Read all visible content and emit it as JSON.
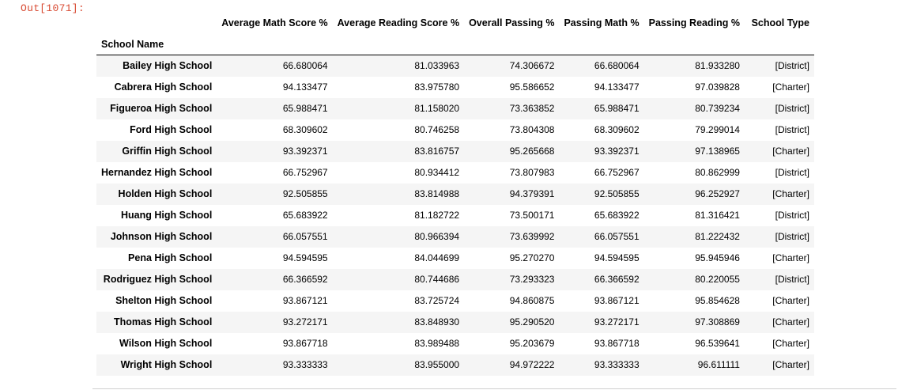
{
  "cell": {
    "prompt": "Out[1071]:"
  },
  "dataframe": {
    "index_name": "School Name",
    "columns": [
      "Average Math Score %",
      "Average Reading Score %",
      "Overall Passing %",
      "Passing Math %",
      "Passing Reading %",
      "School Type"
    ],
    "rows": [
      {
        "name": "Bailey High School",
        "cells": [
          "66.680064",
          "81.033963",
          "74.306672",
          "66.680064",
          "81.933280",
          "[District]"
        ]
      },
      {
        "name": "Cabrera High School",
        "cells": [
          "94.133477",
          "83.975780",
          "95.586652",
          "94.133477",
          "97.039828",
          "[Charter]"
        ]
      },
      {
        "name": "Figueroa High School",
        "cells": [
          "65.988471",
          "81.158020",
          "73.363852",
          "65.988471",
          "80.739234",
          "[District]"
        ]
      },
      {
        "name": "Ford High School",
        "cells": [
          "68.309602",
          "80.746258",
          "73.804308",
          "68.309602",
          "79.299014",
          "[District]"
        ]
      },
      {
        "name": "Griffin High School",
        "cells": [
          "93.392371",
          "83.816757",
          "95.265668",
          "93.392371",
          "97.138965",
          "[Charter]"
        ]
      },
      {
        "name": "Hernandez High School",
        "cells": [
          "66.752967",
          "80.934412",
          "73.807983",
          "66.752967",
          "80.862999",
          "[District]"
        ]
      },
      {
        "name": "Holden High School",
        "cells": [
          "92.505855",
          "83.814988",
          "94.379391",
          "92.505855",
          "96.252927",
          "[Charter]"
        ]
      },
      {
        "name": "Huang High School",
        "cells": [
          "65.683922",
          "81.182722",
          "73.500171",
          "65.683922",
          "81.316421",
          "[District]"
        ]
      },
      {
        "name": "Johnson High School",
        "cells": [
          "66.057551",
          "80.966394",
          "73.639992",
          "66.057551",
          "81.222432",
          "[District]"
        ]
      },
      {
        "name": "Pena High School",
        "cells": [
          "94.594595",
          "84.044699",
          "95.270270",
          "94.594595",
          "95.945946",
          "[Charter]"
        ]
      },
      {
        "name": "Rodriguez High School",
        "cells": [
          "66.366592",
          "80.744686",
          "73.293323",
          "66.366592",
          "80.220055",
          "[District]"
        ]
      },
      {
        "name": "Shelton High School",
        "cells": [
          "93.867121",
          "83.725724",
          "94.860875",
          "93.867121",
          "95.854628",
          "[Charter]"
        ]
      },
      {
        "name": "Thomas High School",
        "cells": [
          "93.272171",
          "83.848930",
          "95.290520",
          "93.272171",
          "97.308869",
          "[Charter]"
        ]
      },
      {
        "name": "Wilson High School",
        "cells": [
          "93.867718",
          "83.989488",
          "95.203679",
          "93.867718",
          "96.539641",
          "[Charter]"
        ]
      },
      {
        "name": "Wright High School",
        "cells": [
          "93.333333",
          "83.955000",
          "94.972222",
          "93.333333",
          "96.611111",
          "[Charter]"
        ]
      }
    ]
  }
}
